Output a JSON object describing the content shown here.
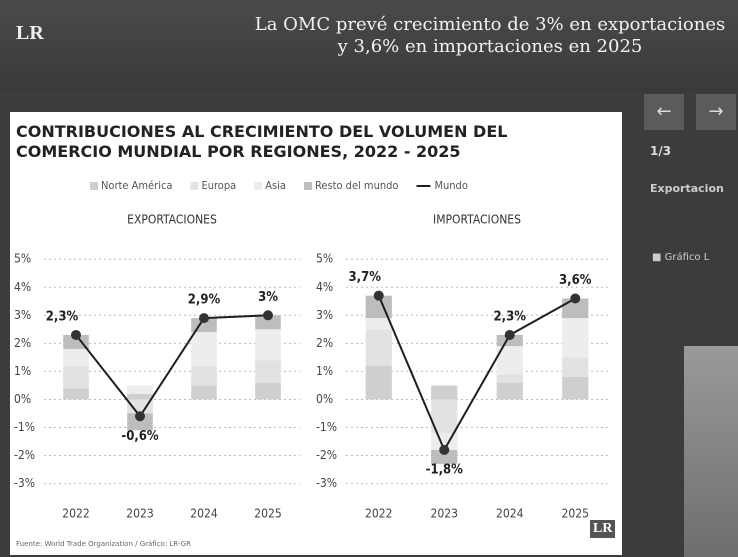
{
  "header": {
    "logo": "LR",
    "headline": "La OMC prevé crecimiento de 3% en exportaciones y 3,6% en importaciones en 2025"
  },
  "sidebar": {
    "counter": "1/3",
    "caption": "Exportacion",
    "tag": "Gráfico L"
  },
  "figure": {
    "title": "CONTRIBUCIONES AL CRECIMIENTO DEL VOLUMEN DEL COMERCIO MUNDIAL POR REGIONES, 2022 - 2025",
    "source": "Fuente: World Trade Organization / Gráfico: LR-GR",
    "logo": "LR"
  },
  "chart_data": [
    {
      "type": "combo",
      "title": "EXPORTACIONES",
      "categories": [
        "2022",
        "2023",
        "2024",
        "2025"
      ],
      "ylim": [
        -3.3,
        5.4
      ],
      "yticks": [
        {
          "value": 5,
          "label": "5%"
        },
        {
          "value": 4,
          "label": "4%"
        },
        {
          "value": 3,
          "label": "3%"
        },
        {
          "value": 2,
          "label": "2%"
        },
        {
          "value": 1,
          "label": "1%"
        },
        {
          "value": 0,
          "label": "0%"
        },
        {
          "value": -1,
          "label": "-1%"
        },
        {
          "value": -2,
          "label": "-2%"
        },
        {
          "value": -3,
          "label": "-3%"
        }
      ],
      "grid": true,
      "series": [
        {
          "name": "Norte América",
          "color": "#cfcfcf",
          "values": [
            0.4,
            0.2,
            0.5,
            0.6
          ]
        },
        {
          "name": "Europa",
          "color": "#e2e2e2",
          "values": [
            0.8,
            -0.5,
            0.7,
            0.8
          ]
        },
        {
          "name": "Asia",
          "color": "#ededed",
          "values": [
            0.6,
            0.3,
            1.2,
            1.1
          ]
        },
        {
          "name": "Resto del mundo",
          "color": "#bdbdbd",
          "values": [
            0.5,
            -0.6,
            0.5,
            0.5
          ]
        },
        {
          "name": "Mundo",
          "color": "#1e1e1e",
          "values": [
            2.3,
            -0.6,
            2.9,
            3
          ],
          "value_labels": [
            "2,3%",
            "-0,6%",
            "2,9%",
            "3%"
          ]
        }
      ]
    },
    {
      "type": "combo",
      "title": "IMPORTACIONES",
      "categories": [
        "2022",
        "2023",
        "2024",
        "2025"
      ],
      "ylim": [
        -3.3,
        5.4
      ],
      "yticks": [
        {
          "value": 5,
          "label": "5%"
        },
        {
          "value": 4,
          "label": "4%"
        },
        {
          "value": 3,
          "label": "3%"
        },
        {
          "value": 2,
          "label": "2%"
        },
        {
          "value": 1,
          "label": "1%"
        },
        {
          "value": 0,
          "label": "0%"
        },
        {
          "value": -1,
          "label": "-1%"
        },
        {
          "value": -2,
          "label": "-2%"
        },
        {
          "value": -3,
          "label": "-3%"
        }
      ],
      "grid": true,
      "series": [
        {
          "values": [
            1.2,
            0.5,
            0.6,
            0.8
          ]
        },
        {
          "values": [
            1.3,
            -1.2,
            0.3,
            0.7
          ]
        },
        {
          "values": [
            0.4,
            -0.6,
            1.0,
            1.4
          ]
        },
        {
          "values": [
            0.8,
            -0.5,
            0.4,
            0.7
          ]
        },
        {
          "values": [
            3.7,
            -1.8,
            2.3,
            3.6
          ],
          "value_labels": [
            "3,7%",
            "-1,8%",
            "2,3%",
            "3,6%"
          ]
        }
      ]
    }
  ]
}
